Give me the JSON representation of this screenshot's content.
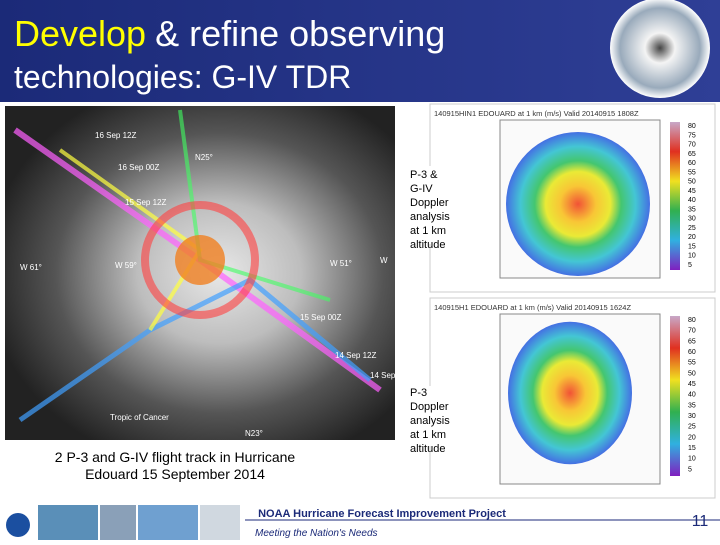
{
  "header": {
    "title_highlight": "Develop",
    "title_line1_rest": "& refine observing",
    "title_line2": "technologies: G-IV TDR"
  },
  "map": {
    "labels": [
      "16 Sep 12Z",
      "16 Sep 00Z",
      "15 Sep 12Z",
      "N25°",
      "W 61°",
      "W 59°",
      "W 51°",
      "W",
      "15 Sep 00Z",
      "14 Sep 12Z",
      "Tropic of Cancer",
      "N23°",
      "14 Sep"
    ],
    "caption": "2 P-3 and G-IV flight track in Hurricane Edouard 15 September 2014"
  },
  "panels": [
    {
      "header": "140915HIN1  EDOUARD  at  1 km  (m/s)  Valid 20140915  1808Z",
      "caption": "P-3 & G-IV Doppler analysis at 1 km altitude",
      "colorbar": [
        "80",
        "75",
        "70",
        "65",
        "60",
        "55",
        "50",
        "45",
        "40",
        "35",
        "30",
        "25",
        "20",
        "15",
        "10",
        "5"
      ]
    },
    {
      "header": "140915H1  EDOUARD  at  1 km  (m/s)  Valid 20140915  1624Z",
      "caption": "P-3 Doppler analysis at 1 km altitude",
      "colorbar": [
        "80",
        "70",
        "65",
        "60",
        "55",
        "50",
        "45",
        "40",
        "35",
        "30",
        "25",
        "20",
        "15",
        "10",
        "5"
      ]
    }
  ],
  "footer": {
    "project": "NOAA Hurricane Forecast Improvement Project",
    "tagline": "Meeting the Nation's Needs",
    "page_number": "11"
  }
}
